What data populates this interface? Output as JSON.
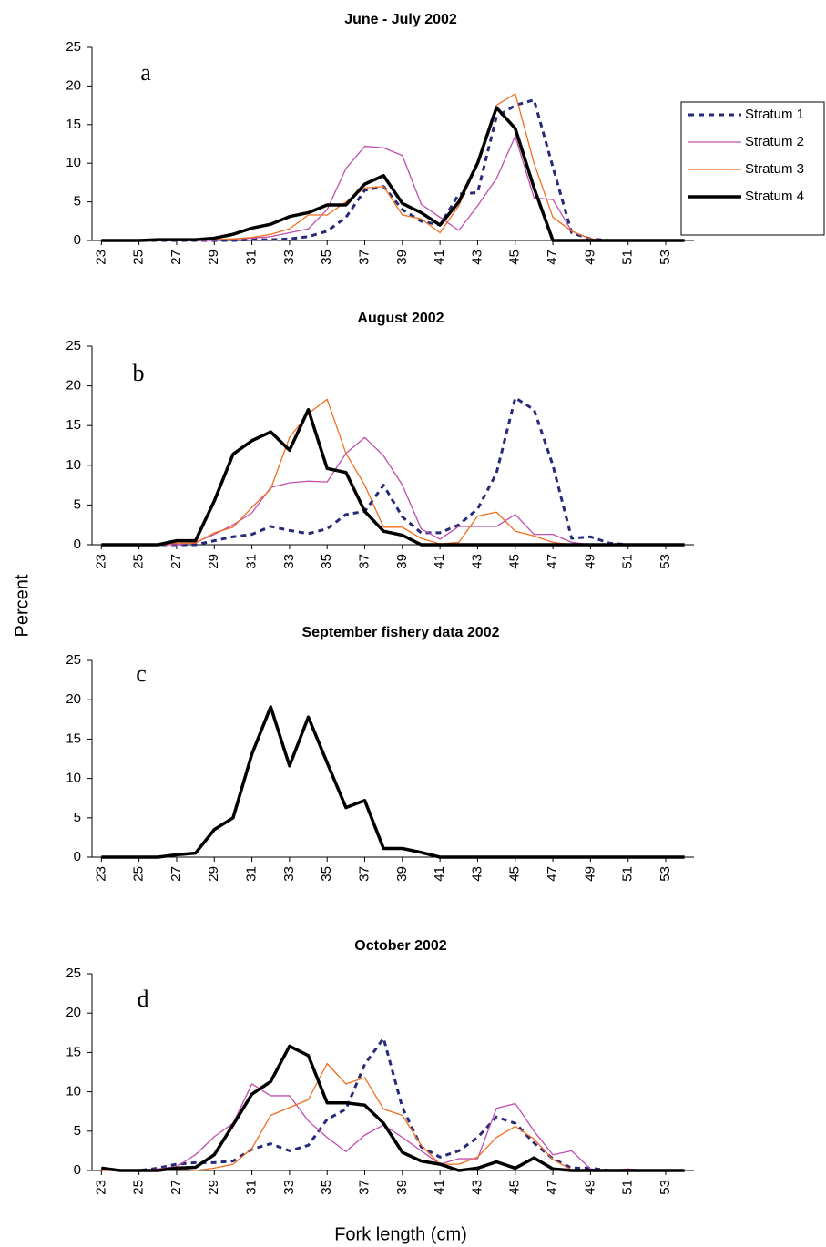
{
  "ylabel": "Percent",
  "xlabel": "Fork length (cm)",
  "chart_data": [
    {
      "type": "line",
      "title": "June - July 2002",
      "annotation": "a",
      "legend": "right",
      "x": [
        23,
        24,
        25,
        26,
        27,
        28,
        29,
        30,
        31,
        32,
        33,
        34,
        35,
        36,
        37,
        38,
        39,
        40,
        41,
        42,
        43,
        44,
        45,
        46,
        47,
        48,
        49,
        50,
        51,
        52,
        53,
        54
      ],
      "xlim": [
        22.5,
        54.5
      ],
      "xticks": [
        23,
        25,
        27,
        29,
        31,
        33,
        35,
        37,
        39,
        41,
        43,
        45,
        47,
        49,
        51,
        53
      ],
      "ylim": [
        0,
        25
      ],
      "yticks": [
        0,
        5,
        10,
        15,
        20,
        25
      ],
      "series": [
        {
          "name": "Stratum 1",
          "color": "#262a78",
          "style": "dashed",
          "width": 3,
          "values": [
            0,
            0,
            0,
            0,
            0,
            0,
            0,
            0,
            0.1,
            0.1,
            0.2,
            0.5,
            1.2,
            3,
            6.5,
            7,
            4,
            2.5,
            2,
            6,
            6.2,
            16,
            17.5,
            18.2,
            9.5,
            1,
            0.2,
            0,
            0,
            0,
            0,
            0
          ]
        },
        {
          "name": "Stratum 2",
          "color": "#c04eae",
          "style": "solid",
          "width": 1.3,
          "values": [
            0,
            0,
            0,
            0,
            0,
            0,
            0,
            0.2,
            0.3,
            0.5,
            1,
            1.5,
            4,
            9.3,
            12.2,
            12,
            11,
            4.7,
            3,
            1.3,
            4.5,
            8,
            13.5,
            5.5,
            5.3,
            1.2,
            0.2,
            0,
            0,
            0,
            0,
            0
          ]
        },
        {
          "name": "Stratum 3",
          "color": "#f26d1f",
          "style": "solid",
          "width": 1.3,
          "values": [
            0,
            0,
            0,
            0,
            0,
            0,
            0.1,
            0.2,
            0.4,
            0.8,
            1.5,
            3.3,
            3.3,
            5,
            6.8,
            7,
            3.3,
            2.8,
            1,
            4.5,
            10,
            17.5,
            19,
            10,
            3,
            1.2,
            0.2,
            0,
            0,
            0,
            0,
            0
          ]
        },
        {
          "name": "Stratum 4",
          "color": "#000000",
          "style": "solid",
          "width": 3.5,
          "values": [
            0,
            0,
            0,
            0.1,
            0.1,
            0.1,
            0.3,
            0.8,
            1.6,
            2.1,
            3.1,
            3.6,
            4.6,
            4.6,
            7.3,
            8.4,
            4.8,
            3.6,
            2,
            5,
            10,
            17.2,
            14.5,
            6.8,
            0,
            0,
            0,
            0,
            0,
            0,
            0,
            0
          ]
        }
      ]
    },
    {
      "type": "line",
      "title": "August 2002",
      "annotation": "b",
      "x": [
        23,
        24,
        25,
        26,
        27,
        28,
        29,
        30,
        31,
        32,
        33,
        34,
        35,
        36,
        37,
        38,
        39,
        40,
        41,
        42,
        43,
        44,
        45,
        46,
        47,
        48,
        49,
        50,
        51,
        52,
        53,
        54
      ],
      "xlim": [
        22.5,
        54.5
      ],
      "xticks": [
        23,
        25,
        27,
        29,
        31,
        33,
        35,
        37,
        39,
        41,
        43,
        45,
        47,
        49,
        51,
        53
      ],
      "ylim": [
        0,
        25
      ],
      "yticks": [
        0,
        5,
        10,
        15,
        20,
        25
      ],
      "series": [
        {
          "name": "Stratum 1",
          "color": "#262a78",
          "style": "dashed",
          "width": 3,
          "values": [
            0,
            0,
            0,
            0,
            0,
            0,
            0.5,
            1,
            1.3,
            2.3,
            1.8,
            1.4,
            2,
            3.8,
            4.2,
            7.5,
            3.5,
            1.5,
            1.5,
            2.5,
            4.5,
            9,
            18.5,
            17,
            10,
            0.8,
            1,
            0.2,
            0,
            0,
            0,
            0
          ]
        },
        {
          "name": "Stratum 2",
          "color": "#c04eae",
          "style": "solid",
          "width": 1.3,
          "values": [
            0,
            0,
            0,
            0,
            0,
            0.3,
            1.3,
            2.5,
            4,
            7.2,
            7.8,
            8,
            7.9,
            11.5,
            13.5,
            11.2,
            7.5,
            2,
            0.7,
            2.3,
            2.3,
            2.3,
            3.8,
            1.3,
            1.3,
            0.3,
            0,
            0,
            0,
            0,
            0,
            0
          ]
        },
        {
          "name": "Stratum 3",
          "color": "#f26d1f",
          "style": "solid",
          "width": 1.3,
          "values": [
            0,
            0,
            0,
            0,
            0.2,
            0.2,
            1.5,
            2.2,
            4.7,
            7,
            13.5,
            16.5,
            18.3,
            11.5,
            7.5,
            2.2,
            2.2,
            0.8,
            0.1,
            0.3,
            3.6,
            4.1,
            1.7,
            1.1,
            0.3,
            0,
            0,
            0,
            0,
            0,
            0,
            0
          ]
        },
        {
          "name": "Stratum 4",
          "color": "#000000",
          "style": "solid",
          "width": 3.5,
          "values": [
            0,
            0,
            0,
            0,
            0.5,
            0.5,
            5.5,
            11.4,
            13.1,
            14.2,
            11.9,
            17,
            9.6,
            9.1,
            4.2,
            1.7,
            1.2,
            0,
            0,
            0,
            0,
            0,
            0,
            0,
            0,
            0,
            0,
            0,
            0,
            0,
            0,
            0
          ]
        }
      ]
    },
    {
      "type": "line",
      "title": "September fishery data 2002",
      "annotation": "c",
      "x": [
        23,
        24,
        25,
        26,
        27,
        28,
        29,
        30,
        31,
        32,
        33,
        34,
        35,
        36,
        37,
        38,
        39,
        40,
        41,
        42,
        43,
        44,
        45,
        46,
        47,
        48,
        49,
        50,
        51,
        52,
        53,
        54
      ],
      "xlim": [
        22.5,
        54.5
      ],
      "xticks": [
        23,
        25,
        27,
        29,
        31,
        33,
        35,
        37,
        39,
        41,
        43,
        45,
        47,
        49,
        51,
        53
      ],
      "ylim": [
        0,
        25
      ],
      "yticks": [
        0,
        5,
        10,
        15,
        20,
        25
      ],
      "series": [
        {
          "color": "#000000",
          "style": "solid",
          "width": 3.5,
          "values": [
            0,
            0,
            0,
            0,
            0.3,
            0.5,
            3.5,
            5,
            13.1,
            19.1,
            11.6,
            17.8,
            12,
            6.3,
            7.2,
            1.1,
            1.1,
            0.6,
            0,
            0,
            0,
            0,
            0,
            0,
            0,
            0,
            0,
            0,
            0,
            0,
            0,
            0
          ]
        }
      ]
    },
    {
      "type": "line",
      "title": "October 2002",
      "annotation": "d",
      "x": [
        23,
        24,
        25,
        26,
        27,
        28,
        29,
        30,
        31,
        32,
        33,
        34,
        35,
        36,
        37,
        38,
        39,
        40,
        41,
        42,
        43,
        44,
        45,
        46,
        47,
        48,
        49,
        50,
        51,
        52,
        53,
        54
      ],
      "xlim": [
        22.5,
        54.5
      ],
      "xticks": [
        23,
        25,
        27,
        29,
        31,
        33,
        35,
        37,
        39,
        41,
        43,
        45,
        47,
        49,
        51,
        53
      ],
      "ylim": [
        0,
        25
      ],
      "yticks": [
        0,
        5,
        10,
        15,
        20,
        25
      ],
      "series": [
        {
          "name": "Stratum 1",
          "color": "#262a78",
          "style": "dashed",
          "width": 3,
          "values": [
            0.2,
            0,
            0,
            0.3,
            0.8,
            1,
            1,
            1.2,
            2.7,
            3.4,
            2.5,
            3.2,
            6.5,
            7.8,
            13.5,
            16.8,
            8,
            3,
            1.7,
            2.5,
            4.2,
            6.8,
            6,
            3.5,
            1.5,
            0.3,
            0.3,
            0,
            0,
            0,
            0,
            0
          ]
        },
        {
          "name": "Stratum 2",
          "color": "#c04eae",
          "style": "solid",
          "width": 1.3,
          "values": [
            0,
            0,
            0,
            0.2,
            0.5,
            2,
            4.3,
            6,
            11,
            9.5,
            9.5,
            6.3,
            4.2,
            2.4,
            4.5,
            5.8,
            4.2,
            2.5,
            0.8,
            1.5,
            1.5,
            7.9,
            8.5,
            5,
            2,
            2.5,
            0.2,
            0,
            0.2,
            0,
            0,
            0
          ]
        },
        {
          "name": "Stratum 3",
          "color": "#f26d1f",
          "style": "solid",
          "width": 1.3,
          "values": [
            0,
            0,
            0,
            0,
            0.2,
            0,
            0.3,
            0.8,
            2.8,
            7,
            8,
            9,
            13.6,
            11,
            11.8,
            7.8,
            7,
            3.2,
            0.8,
            0.8,
            1.7,
            4.2,
            5.6,
            4,
            1.4,
            0.1,
            0,
            0,
            0,
            0,
            0,
            0
          ]
        },
        {
          "name": "Stratum 4",
          "color": "#000000",
          "style": "solid",
          "width": 3.5,
          "values": [
            0.3,
            0,
            0,
            0,
            0.3,
            0.4,
            2,
            5.8,
            9.7,
            11.3,
            15.8,
            14.6,
            8.6,
            8.6,
            8.3,
            6,
            2.3,
            1.2,
            0.8,
            0,
            0.3,
            1.1,
            0.3,
            1.6,
            0.2,
            0,
            0,
            0,
            0,
            0,
            0,
            0
          ]
        }
      ]
    }
  ]
}
